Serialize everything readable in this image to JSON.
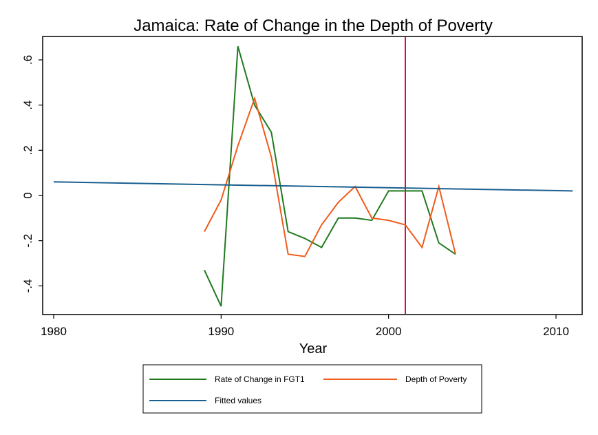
{
  "chart_data": {
    "type": "line",
    "title": "Jamaica: Rate of Change in the Depth of Poverty",
    "xlabel": "Year",
    "ylabel": "",
    "xlim": [
      1980,
      2011
    ],
    "ylim": [
      -0.5,
      0.7
    ],
    "x_ticks": [
      1980,
      1990,
      2000,
      2010
    ],
    "x_tick_labels": [
      "1980",
      "1990",
      "2000",
      "2010"
    ],
    "y_ticks": [
      -0.4,
      -0.2,
      0,
      0.2,
      0.4,
      0.6
    ],
    "y_tick_labels": [
      "-.4",
      "-.2",
      "0",
      ".2",
      ".4",
      ".6"
    ],
    "grid": false,
    "legend_position": "bottom",
    "series": [
      {
        "name": "Rate of Change in FGT1",
        "color": "#1f7a1f",
        "x": [
          1989,
          1990,
          1991,
          1992,
          1993,
          1994,
          1995,
          1996,
          1997,
          1998,
          1999,
          2000,
          2001,
          2002,
          2003,
          2004
        ],
        "y": [
          -0.33,
          -0.49,
          0.66,
          0.4,
          0.28,
          -0.16,
          -0.19,
          -0.23,
          -0.1,
          -0.1,
          -0.11,
          0.02,
          0.02,
          0.02,
          -0.21,
          -0.26
        ]
      },
      {
        "name": "Depth of Poverty",
        "color": "#f05a1a",
        "x": [
          1989,
          1990,
          1991,
          1992,
          1993,
          1994,
          1995,
          1996,
          1997,
          1998,
          1999,
          2000,
          2001,
          2002,
          2003,
          2004
        ],
        "y": [
          -0.16,
          -0.02,
          0.22,
          0.43,
          0.17,
          -0.26,
          -0.27,
          -0.13,
          -0.03,
          0.04,
          -0.1,
          -0.11,
          -0.13,
          -0.23,
          0.04,
          -0.26
        ]
      },
      {
        "name": "Fitted values",
        "color": "#1a5f8f",
        "x": [
          1980,
          2011
        ],
        "y": [
          0.06,
          0.02
        ]
      }
    ],
    "reference_lines": [
      {
        "axis": "x",
        "value": 2001,
        "color": "#d6103f"
      }
    ]
  }
}
